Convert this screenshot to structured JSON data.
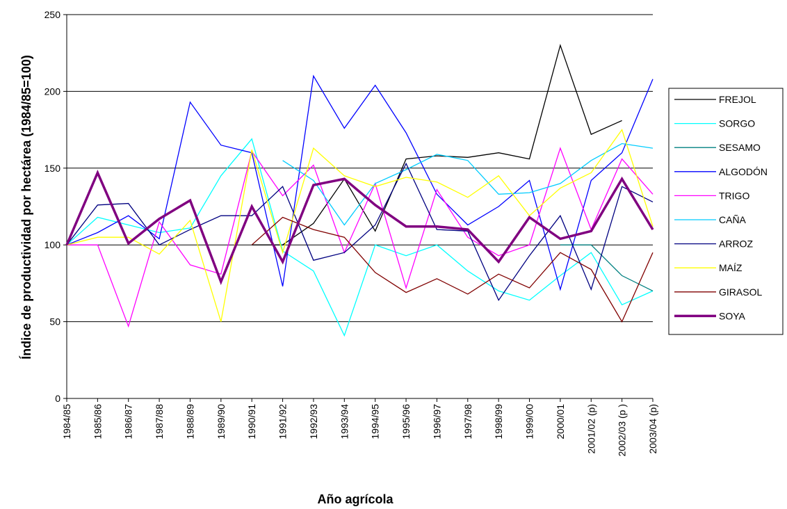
{
  "chart_data": {
    "type": "line",
    "xlabel": "Año agrícola",
    "ylabel": "Índice de productividad por hectárea (1984/85=100)",
    "ylim": [
      0,
      250
    ],
    "yticks": [
      0,
      50,
      100,
      150,
      200,
      250
    ],
    "grid": true,
    "legend_position": "right",
    "categories": [
      "1984/85",
      "1985/86",
      "1986/87",
      "1987/88",
      "1988/89",
      "1989/90",
      "1990/91",
      "1991/92",
      "1992/93",
      "1993/94",
      "1994/95",
      "1995/96",
      "1996/97",
      "1997/98",
      "1998/99",
      "1999/00",
      "2000/01",
      "2001/02 (p)",
      "2002/03 (p )",
      "2003/04 (p)"
    ],
    "series": [
      {
        "name": "FREJOL",
        "color": "#000000",
        "width": 1.3,
        "values": [
          null,
          null,
          null,
          null,
          null,
          null,
          100,
          100,
          114,
          143,
          109,
          156,
          158,
          157,
          160,
          156,
          230,
          172,
          181,
          null
        ]
      },
      {
        "name": "SORGO",
        "color": "#00FFFF",
        "width": 1.3,
        "values": [
          100,
          118,
          113,
          108,
          111,
          145,
          169,
          96,
          83,
          41,
          100,
          93,
          100,
          83,
          70,
          64,
          80,
          95,
          61,
          70
        ]
      },
      {
        "name": "SESAMO",
        "color": "#008080",
        "width": 1.3,
        "values": [
          null,
          null,
          null,
          null,
          null,
          null,
          null,
          null,
          null,
          null,
          null,
          null,
          null,
          null,
          null,
          null,
          100,
          100,
          80,
          70
        ]
      },
      {
        "name": "ALGODÓN",
        "color": "#0000FF",
        "width": 1.3,
        "values": [
          100,
          108,
          119,
          104,
          193,
          165,
          160,
          73,
          210,
          176,
          204,
          173,
          133,
          113,
          125,
          142,
          71,
          142,
          160,
          208
        ]
      },
      {
        "name": "TRIGO",
        "color": "#FF00FF",
        "width": 1.3,
        "values": [
          100,
          100,
          47,
          115,
          87,
          81,
          161,
          132,
          152,
          95,
          140,
          72,
          136,
          105,
          93,
          100,
          163,
          110,
          156,
          133
        ]
      },
      {
        "name": "CAÑA",
        "color": "#00CCFF",
        "width": 1.3,
        "values": [
          100,
          null,
          null,
          null,
          null,
          null,
          null,
          155,
          142,
          113,
          140,
          149,
          159,
          155,
          133,
          134,
          140,
          155,
          166,
          163
        ]
      },
      {
        "name": "ARROZ",
        "color": "#000080",
        "width": 1.3,
        "values": [
          100,
          126,
          127,
          100,
          110,
          119,
          119,
          138,
          90,
          95,
          113,
          153,
          110,
          109,
          64,
          93,
          119,
          71,
          138,
          128
        ]
      },
      {
        "name": "MAÍZ",
        "color": "#FFFF00",
        "width": 1.3,
        "values": [
          100,
          105,
          105,
          94,
          116,
          50,
          162,
          95,
          163,
          145,
          138,
          144,
          141,
          131,
          145,
          119,
          137,
          147,
          175,
          112
        ]
      },
      {
        "name": "GIRASOL",
        "color": "#800000",
        "width": 1.3,
        "values": [
          null,
          null,
          null,
          null,
          null,
          null,
          100,
          118,
          110,
          105,
          82,
          69,
          78,
          68,
          81,
          72,
          95,
          84,
          50,
          95
        ]
      },
      {
        "name": "SOYA",
        "color": "#800080",
        "width": 3.5,
        "values": [
          100,
          147,
          101,
          117,
          129,
          76,
          125,
          89,
          139,
          143,
          126,
          112,
          112,
          110,
          89,
          118,
          104,
          109,
          143,
          110
        ]
      }
    ]
  }
}
